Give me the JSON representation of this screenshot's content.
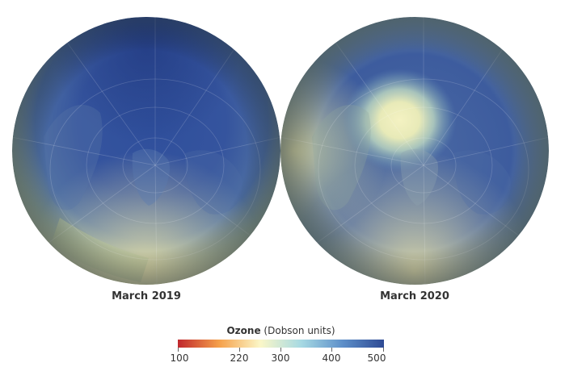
{
  "panels": [
    {
      "caption": "March 2019"
    },
    {
      "caption": "March 2020"
    }
  ],
  "legend": {
    "title_bold": "Ozone",
    "title_rest": " (Dobson units)",
    "ticks": [
      "100",
      "220",
      "300",
      "400",
      "500"
    ],
    "colors": [
      "#c0272d",
      "#f5a04a",
      "#fbf7c8",
      "#a6d9e3",
      "#5d8fc9",
      "#2e4a94"
    ]
  }
}
